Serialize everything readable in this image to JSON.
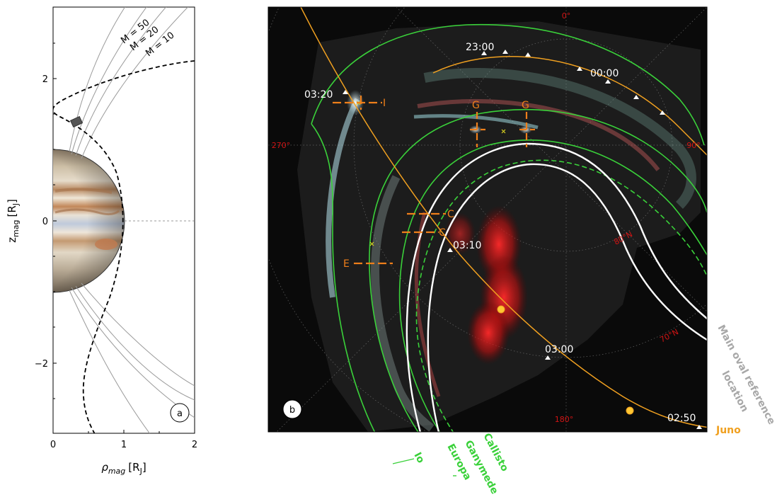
{
  "panel_a": {
    "badge": "a",
    "ylabel_main": "z",
    "ylabel_sub": "mag",
    "ylabel_unit": "[R",
    "ylabel_unit_sub": "J",
    "ylabel_close": "]",
    "xlabel_main": "ρ",
    "xlabel_sub": "mag",
    "xlabel_unit": "[R",
    "xlabel_unit_sub": "J",
    "xlabel_close": "]",
    "yticks": [
      "2",
      "0",
      "−2"
    ],
    "xticks": [
      "0",
      "1",
      "2"
    ],
    "field_line_labels": [
      "M = 50",
      "M = 20",
      "M = 10"
    ]
  },
  "panel_b": {
    "badge": "b",
    "longitude_labels": {
      "top": "0°",
      "left": "270°",
      "right": "90°",
      "bottom": "180°"
    },
    "latitude_labels": [
      "80°N",
      "70°N"
    ],
    "juno_times": [
      "23:00",
      "00:00",
      "03:20",
      "03:10",
      "03:00",
      "02:50"
    ],
    "feature_labels": [
      "G",
      "G",
      "C",
      "C",
      "E",
      "I"
    ],
    "moon_labels": [
      "Io",
      "Europa",
      "Ganymede",
      "Callisto"
    ],
    "reference_label_line1": "Main oval reference",
    "reference_label_line2": "location",
    "juno_label": "Juno"
  },
  "colors": {
    "juno": "#f0a020",
    "moon_footprint": "#3ad13a",
    "main_oval": "#ffffff",
    "feature_marker": "#ef7f1a",
    "grid_label": "#d21414",
    "reference_label": "#a8a8a8"
  }
}
